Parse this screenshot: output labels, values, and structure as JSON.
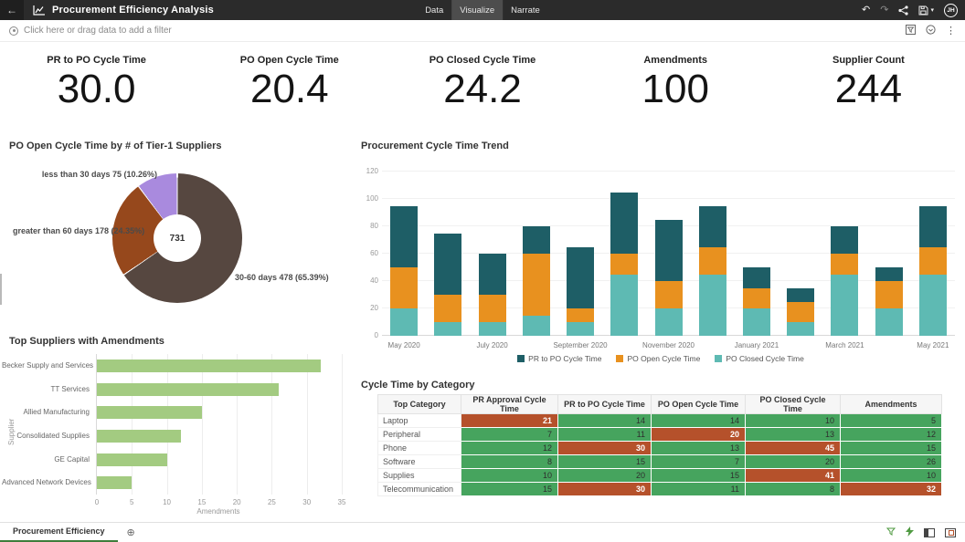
{
  "header": {
    "title": "Procurement Efficiency Analysis",
    "tabs": [
      {
        "label": "Data"
      },
      {
        "label": "Visualize"
      },
      {
        "label": "Narrate"
      }
    ],
    "active_tab": "Visualize",
    "avatar_initials": "JH"
  },
  "filter_bar": {
    "prompt": "Click here or drag data to add a filter"
  },
  "kpis": [
    {
      "label": "PR to PO Cycle Time",
      "value": "30.0"
    },
    {
      "label": "PO Open Cycle Time",
      "value": "20.4"
    },
    {
      "label": "PO Closed Cycle Time",
      "value": "24.2"
    },
    {
      "label": "Amendments",
      "value": "100"
    },
    {
      "label": "Supplier Count",
      "value": "244"
    }
  ],
  "chart_data": [
    {
      "type": "pie",
      "title": "PO Open Cycle Time by # of Tier-1 Suppliers",
      "center_total": "731",
      "slices": [
        {
          "label": "30-60 days",
          "value": 478,
          "pct": 65.39,
          "color": "#564740",
          "display": "30-60 days 478 (65.39%)"
        },
        {
          "label": "greater than 60 days",
          "value": 178,
          "pct": 24.35,
          "color": "#96481c",
          "display": "greater than 60 days 178 (24.35%)"
        },
        {
          "label": "less than 30 days",
          "value": 75,
          "pct": 10.26,
          "color": "#a98ade",
          "display": "less than 30 days 75 (10.26%)"
        }
      ]
    },
    {
      "type": "bar",
      "stacked": true,
      "title": "Procurement Cycle Time Trend",
      "x": [
        "May 2020",
        "June 2020",
        "July 2020",
        "August 2020",
        "September 2020",
        "October 2020",
        "November 2020",
        "December 2020",
        "January 2021",
        "February 2021",
        "March 2021",
        "April 2021",
        "May 2021"
      ],
      "x_label_every": 2,
      "series": [
        {
          "name": "PR to PO Cycle Time",
          "color": "#1e5e66",
          "values": [
            45,
            45,
            30,
            20,
            45,
            45,
            45,
            30,
            15,
            10,
            20,
            10,
            30
          ]
        },
        {
          "name": "PO Open Cycle Time",
          "color": "#e8911f",
          "values": [
            30,
            20,
            20,
            45,
            10,
            15,
            20,
            20,
            15,
            15,
            15,
            20,
            20
          ]
        },
        {
          "name": "PO Closed Cycle Time",
          "color": "#5ebab3",
          "values": [
            20,
            10,
            10,
            15,
            10,
            45,
            20,
            45,
            20,
            10,
            45,
            20,
            45
          ]
        }
      ],
      "ylim": [
        0,
        120
      ],
      "ytick_step": 20,
      "grid": true,
      "legend_position": "bottom"
    },
    {
      "type": "bar",
      "orientation": "horizontal",
      "title": "Top Suppliers with Amendments",
      "categories": [
        "Becker Supply and Services",
        "TT Services",
        "Allied Manufacturing",
        "Consolidated Supplies",
        "GE Capital",
        "Advanced Network Devices"
      ],
      "values": [
        32,
        26,
        15,
        12,
        10,
        5
      ],
      "color": "#a3cb81",
      "xlabel": "Amendments",
      "ylabel": "Supplier",
      "xlim": [
        0,
        35
      ],
      "xtick_step": 5,
      "grid": true
    },
    {
      "type": "table",
      "title": "Cycle Time by Category",
      "columns": [
        "Top Category",
        "PR Approval Cycle Time",
        "PR to PO Cycle Time",
        "PO Open Cycle Time",
        "PO Closed Cycle Time",
        "Amendments"
      ],
      "rows": [
        {
          "category": "Laptop",
          "values": [
            21,
            14,
            14,
            10,
            5
          ],
          "flags": [
            "bad",
            "good",
            "good",
            "good",
            "good"
          ]
        },
        {
          "category": "Peripheral",
          "values": [
            7,
            11,
            20,
            13,
            12
          ],
          "flags": [
            "good",
            "good",
            "bad",
            "good",
            "good"
          ]
        },
        {
          "category": "Phone",
          "values": [
            12,
            30,
            13,
            45,
            15
          ],
          "flags": [
            "good",
            "bad",
            "good",
            "bad",
            "good"
          ]
        },
        {
          "category": "Software",
          "values": [
            8,
            15,
            7,
            20,
            26
          ],
          "flags": [
            "good",
            "good",
            "good",
            "good",
            "good"
          ]
        },
        {
          "category": "Supplies",
          "values": [
            10,
            20,
            15,
            41,
            10
          ],
          "flags": [
            "good",
            "good",
            "good",
            "bad",
            "good"
          ]
        },
        {
          "category": "Telecommunication",
          "values": [
            15,
            30,
            11,
            8,
            32
          ],
          "flags": [
            "good",
            "bad",
            "good",
            "good",
            "bad"
          ]
        }
      ],
      "cell_colors": {
        "good": "#46a45e",
        "bad": "#b5512b"
      }
    }
  ],
  "footer": {
    "page_tab": "Procurement Efficiency"
  },
  "colors": {
    "header_bg": "#2b2b2b",
    "accent_green": "#3e7d3b",
    "icon_green": "#4f9a41"
  }
}
